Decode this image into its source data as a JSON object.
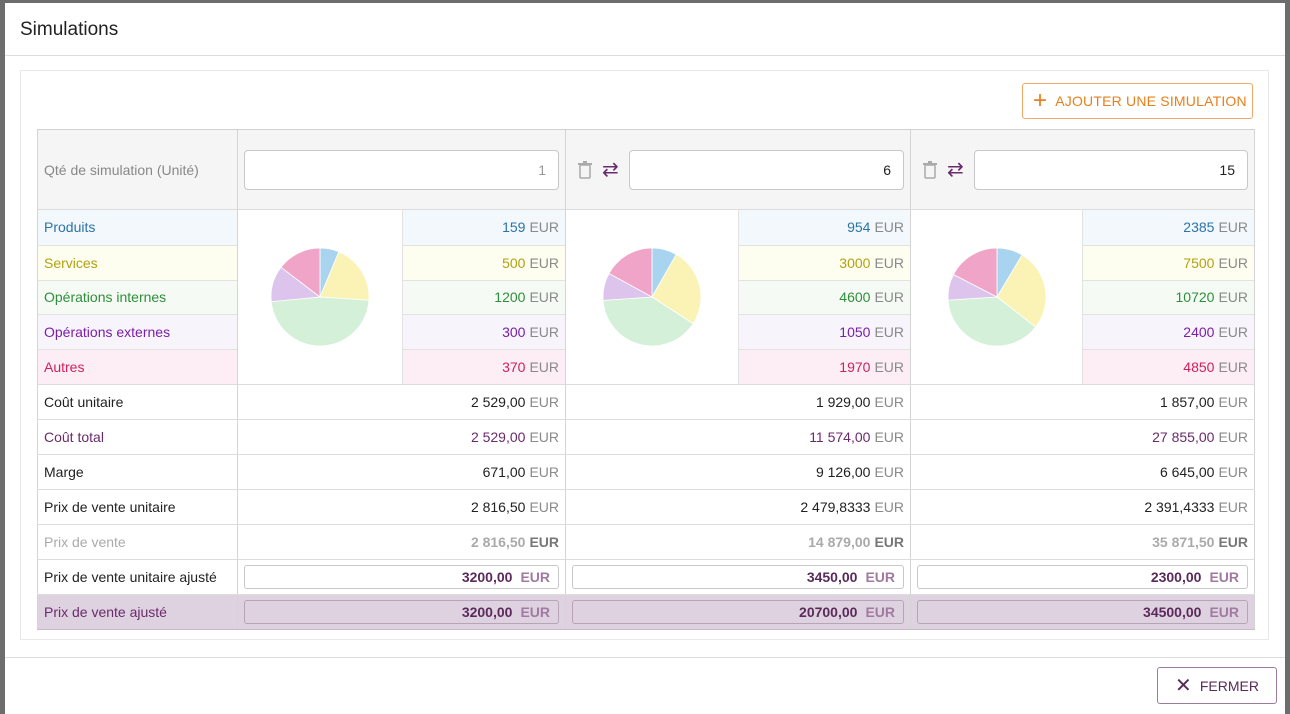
{
  "modal": {
    "title": "Simulations"
  },
  "toolbar": {
    "add_label": "AJOUTER UNE SIMULATION"
  },
  "footer": {
    "close_label": "FERMER"
  },
  "rows": {
    "qty": "Qté de simulation (Unité)",
    "categories": [
      "Produits",
      "Services",
      "Opérations internes",
      "Opérations externes",
      "Autres"
    ],
    "unit_cost": "Coût unitaire",
    "total_cost": "Coût total",
    "margin": "Marge",
    "unit_price": "Prix de vente unitaire",
    "price": "Prix de vente",
    "adj_unit_price": "Prix de vente unitaire ajusté",
    "adj_price": "Prix de vente ajusté"
  },
  "currency": "EUR",
  "category_colors": [
    "#a9d4f0",
    "#fbf3b5",
    "#d4f0d8",
    "#dcc4ec",
    "#f0a5c8"
  ],
  "simulations": [
    {
      "qty": "1",
      "categories": [
        "159",
        "500",
        "1200",
        "300",
        "370"
      ],
      "unit_cost": "2 529,00",
      "total_cost": "2 529,00",
      "margin": "671,00",
      "unit_price": "2 816,50",
      "price": "2 816,50",
      "adj_unit_price": "3200,00",
      "adj_price": "3200,00"
    },
    {
      "qty": "6",
      "categories": [
        "954",
        "3000",
        "4600",
        "1050",
        "1970"
      ],
      "unit_cost": "1 929,00",
      "total_cost": "11 574,00",
      "margin": "9 126,00",
      "unit_price": "2 479,8333",
      "price": "14 879,00",
      "adj_unit_price": "3450,00",
      "adj_price": "20700,00"
    },
    {
      "qty": "15",
      "categories": [
        "2385",
        "7500",
        "10720",
        "2400",
        "4850"
      ],
      "unit_cost": "1 857,00",
      "total_cost": "27 855,00",
      "margin": "6 645,00",
      "unit_price": "2 391,4333",
      "price": "35 871,50",
      "adj_unit_price": "2300,00",
      "adj_price": "34500,00"
    }
  ]
}
